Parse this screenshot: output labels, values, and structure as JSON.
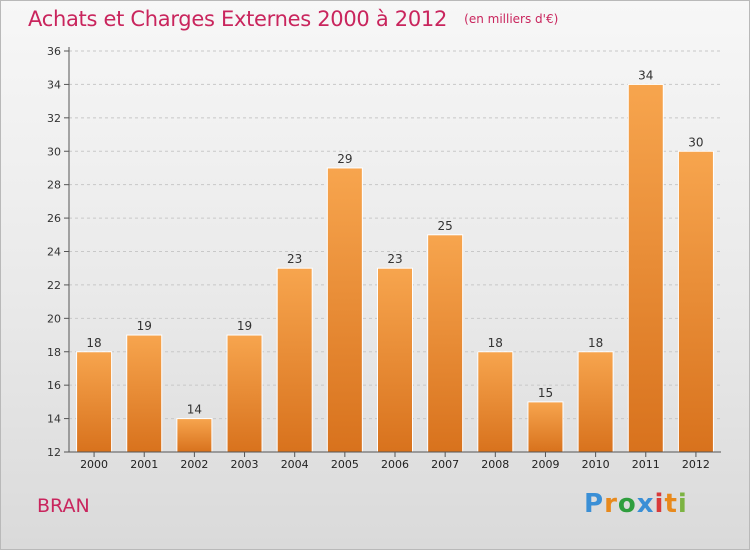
{
  "header": {
    "title": "Achats et Charges Externes 2000 à 2012",
    "unit": "(en milliers d'€)"
  },
  "footer": {
    "commune": "BRAN",
    "logo_text": "Proxiti",
    "logo_colors": [
      "#3a8fd6",
      "#e8891c",
      "#2f9e3e",
      "#3a8fd6",
      "#d93a3a",
      "#e8891c",
      "#7cb342"
    ]
  },
  "chart_data": {
    "type": "bar",
    "categories": [
      "2000",
      "2001",
      "2002",
      "2003",
      "2004",
      "2005",
      "2006",
      "2007",
      "2008",
      "2009",
      "2010",
      "2011",
      "2012"
    ],
    "values": [
      18,
      19,
      14,
      19,
      23,
      29,
      23,
      25,
      18,
      15,
      18,
      34,
      30
    ],
    "ylim": [
      12,
      36
    ],
    "yticks": [
      12,
      14,
      16,
      18,
      20,
      22,
      24,
      26,
      28,
      30,
      32,
      34,
      36
    ],
    "grid": "horizontal dashed",
    "bar_color_top": "#f7a54e",
    "bar_color_bottom": "#d8721d"
  }
}
